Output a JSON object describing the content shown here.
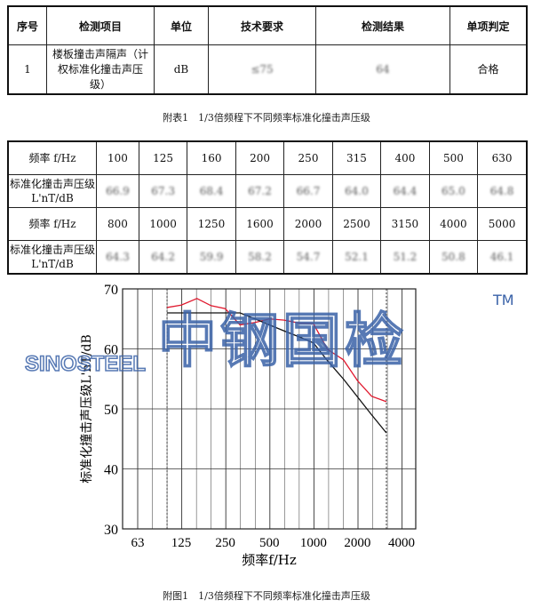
{
  "table1": {
    "headers": [
      "序号",
      "检测项目",
      "单位",
      "技术要求",
      "检测结果",
      "单项判定"
    ],
    "row": {
      "no": "1",
      "item": "楼板撞击声隔声（计权标准化撞击声压级）",
      "unit": "dB",
      "requirement": "≤75",
      "result": "64",
      "verdict": "合格"
    }
  },
  "caption1": "附表1　1/3倍频程下不同频率标准化撞击声压级",
  "table2": {
    "freq_label": "频率 f/Hz",
    "level_label": "标准化撞击声压级 L'nT/dB",
    "rows": [
      {
        "freqs": [
          "100",
          "125",
          "160",
          "200",
          "250",
          "315",
          "400",
          "500",
          "630"
        ],
        "levels": [
          "66.9",
          "67.3",
          "68.4",
          "67.2",
          "66.7",
          "64.0",
          "64.4",
          "65.0",
          "64.8"
        ]
      },
      {
        "freqs": [
          "800",
          "1000",
          "1250",
          "1600",
          "2000",
          "2500",
          "3150",
          "4000",
          "5000"
        ],
        "levels": [
          "64.3",
          "64.2",
          "59.9",
          "58.2",
          "54.7",
          "52.1",
          "51.2",
          "50.8",
          "46.1"
        ]
      }
    ]
  },
  "chart_data": {
    "type": "line",
    "xlabel": "频率f/Hz",
    "ylabel": "标准化撞击声压级L'nT/dB",
    "x_scale": "log",
    "xticks": [
      "63",
      "125",
      "250",
      "500",
      "1000",
      "2000",
      "4000"
    ],
    "yticks": [
      "30",
      "40",
      "50",
      "60",
      "70"
    ],
    "ylim": [
      30,
      70
    ],
    "xlim": [
      50,
      5000
    ],
    "grid": true,
    "series": [
      {
        "color": "#e0182d",
        "x": [
          100,
          125,
          160,
          200,
          250,
          315,
          400,
          500,
          630,
          800,
          1000,
          1250,
          1600,
          2000,
          2500,
          3150
        ],
        "y": [
          66.9,
          67.3,
          68.4,
          67.2,
          66.7,
          64.0,
          64.4,
          65.0,
          64.8,
          64.3,
          64.2,
          59.9,
          58.2,
          54.7,
          52.1,
          51.2
        ]
      },
      {
        "color": "#111111",
        "x": [
          100,
          125,
          160,
          200,
          250,
          315,
          400,
          500,
          630,
          800,
          1000,
          1250,
          1600,
          2000,
          2500,
          3150
        ],
        "y": [
          66,
          66,
          66,
          66,
          66,
          66,
          65,
          64,
          63,
          62,
          61,
          58,
          55,
          52,
          49,
          46
        ]
      }
    ],
    "markers": [
      100,
      3150
    ]
  },
  "watermark": {
    "brand_cn": "中钢国检",
    "brand_en": "SINOSTEEL",
    "tm": "TM"
  },
  "caption2": "附图1　1/3倍频程下不同频率标准化撞击声压级"
}
